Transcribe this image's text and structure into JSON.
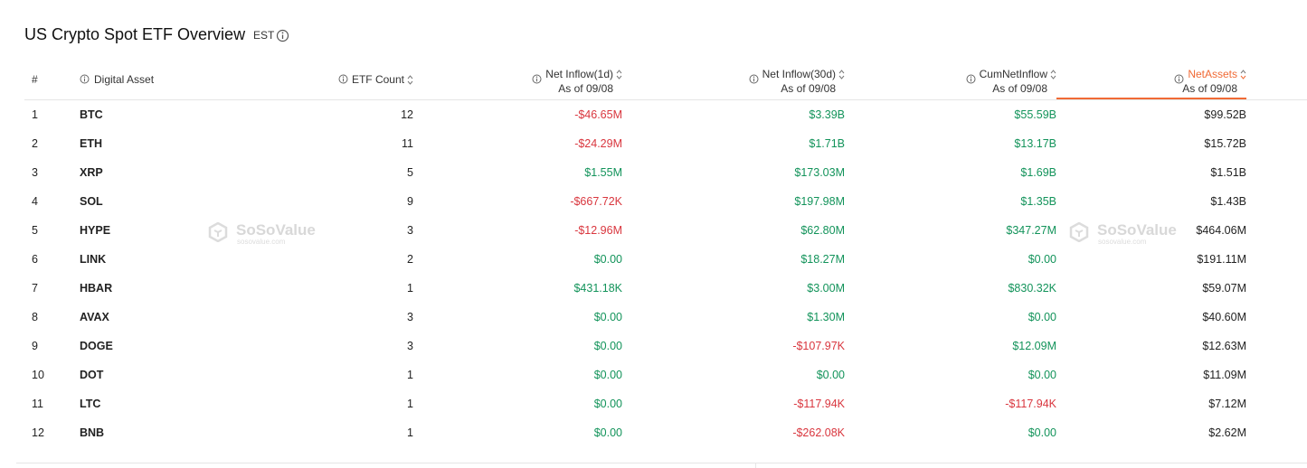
{
  "header": {
    "title": "US Crypto Spot ETF Overview",
    "timezone": "EST"
  },
  "watermark": {
    "brand": "SoSoValue",
    "site": "sosovalue.com"
  },
  "table": {
    "columns": [
      {
        "label": "#"
      },
      {
        "label": "Digital Asset"
      },
      {
        "label": "ETF Count"
      },
      {
        "label": "Net Inflow(1d)",
        "sublabel": "As of 09/08"
      },
      {
        "label": "Net Inflow(30d)",
        "sublabel": "As of 09/08"
      },
      {
        "label": "CumNetInflow",
        "sublabel": "As of 09/08"
      },
      {
        "label": "NetAssets",
        "sublabel": "As of 09/08"
      }
    ],
    "rows": [
      [
        "1",
        "BTC",
        "12",
        "-$46.65M",
        "$3.39B",
        "$55.59B",
        "$99.52B"
      ],
      [
        "2",
        "ETH",
        "11",
        "-$24.29M",
        "$1.71B",
        "$13.17B",
        "$15.72B"
      ],
      [
        "3",
        "XRP",
        "5",
        "$1.55M",
        "$173.03M",
        "$1.69B",
        "$1.51B"
      ],
      [
        "4",
        "SOL",
        "9",
        "-$667.72K",
        "$197.98M",
        "$1.35B",
        "$1.43B"
      ],
      [
        "5",
        "HYPE",
        "3",
        "-$12.96M",
        "$62.80M",
        "$347.27M",
        "$464.06M"
      ],
      [
        "6",
        "LINK",
        "2",
        "$0.00",
        "$18.27M",
        "$0.00",
        "$191.11M"
      ],
      [
        "7",
        "HBAR",
        "1",
        "$431.18K",
        "$3.00M",
        "$830.32K",
        "$59.07M"
      ],
      [
        "8",
        "AVAX",
        "3",
        "$0.00",
        "$1.30M",
        "$0.00",
        "$40.60M"
      ],
      [
        "9",
        "DOGE",
        "3",
        "$0.00",
        "-$107.97K",
        "$12.09M",
        "$12.63M"
      ],
      [
        "10",
        "DOT",
        "1",
        "$0.00",
        "$0.00",
        "$0.00",
        "$11.09M"
      ],
      [
        "11",
        "LTC",
        "1",
        "$0.00",
        "-$117.94K",
        "-$117.94K",
        "$7.12M"
      ],
      [
        "12",
        "BNB",
        "1",
        "$0.00",
        "-$262.08K",
        "$0.00",
        "$2.62M"
      ]
    ]
  }
}
